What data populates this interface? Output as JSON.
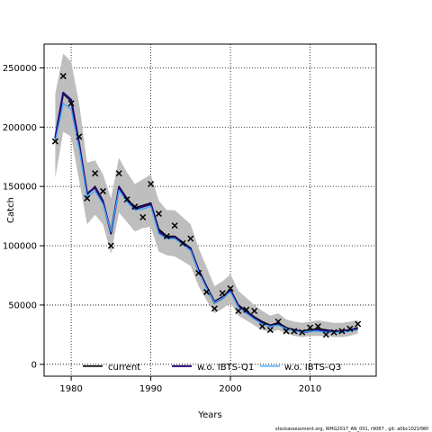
{
  "chart_data": {
    "type": "line",
    "xlabel": "Years",
    "ylabel": "Catch",
    "xlim": [
      1976.6,
      2018.3
    ],
    "ylim": [
      -10000,
      270000
    ],
    "x_ticks": [
      1980,
      1990,
      2000,
      2010
    ],
    "y_ticks": [
      0,
      50000,
      100000,
      150000,
      200000,
      250000
    ],
    "grid": true,
    "legend_position": "bottom",
    "colors": {
      "current": "#000000",
      "wo_q1": "#2a0a78",
      "wo_q3": "#3aa6ff",
      "band": "#bebebe",
      "observed": "#000000"
    },
    "x": [
      1978,
      1979,
      1980,
      1981,
      1982,
      1983,
      1984,
      1985,
      1986,
      1987,
      1988,
      1989,
      1990,
      1991,
      1992,
      1993,
      1994,
      1995,
      1996,
      1997,
      1998,
      1999,
      2000,
      2001,
      2002,
      2003,
      2004,
      2005,
      2006,
      2007,
      2008,
      2009,
      2010,
      2011,
      2012,
      2013,
      2014,
      2015,
      2016
    ],
    "series": [
      {
        "name": "current",
        "values": [
          190000,
          228000,
          222000,
          185000,
          143000,
          150000,
          138000,
          110000,
          150000,
          140000,
          132000,
          134000,
          136000,
          114000,
          108000,
          108000,
          103000,
          98000,
          80000,
          66000,
          53000,
          57000,
          63000,
          50000,
          45000,
          40000,
          36000,
          33000,
          35000,
          31000,
          29000,
          28000,
          29000,
          30000,
          29000,
          28000,
          28000,
          29000,
          31000
        ]
      },
      {
        "name": "w.o. IBTS-Q1",
        "values": [
          191000,
          229000,
          223000,
          186000,
          144000,
          149000,
          137000,
          111000,
          149000,
          139000,
          131000,
          133000,
          135000,
          112000,
          107000,
          107000,
          102000,
          97000,
          79000,
          65000,
          52000,
          56000,
          62000,
          49000,
          44000,
          39000,
          35000,
          32000,
          34000,
          30000,
          29000,
          27000,
          28000,
          29000,
          28000,
          28000,
          28000,
          29000,
          30000
        ]
      },
      {
        "name": "w.o. IBTS-Q3",
        "values": [
          188000,
          220000,
          215000,
          182000,
          141000,
          146000,
          135000,
          112000,
          147000,
          137000,
          130000,
          131000,
          133000,
          110000,
          106000,
          106000,
          101000,
          96000,
          78000,
          64000,
          52000,
          56000,
          61000,
          48000,
          43000,
          38000,
          34000,
          32000,
          33000,
          30000,
          28000,
          27000,
          28000,
          28000,
          27000,
          27000,
          27000,
          28000,
          29000
        ]
      }
    ],
    "band_upper": [
      228000,
      262000,
      255000,
      220000,
      170000,
      172000,
      160000,
      140000,
      174000,
      162000,
      152000,
      156000,
      160000,
      138000,
      130000,
      130000,
      124000,
      118000,
      98000,
      82000,
      66000,
      70000,
      76000,
      62000,
      56000,
      50000,
      45000,
      41000,
      43000,
      38000,
      36000,
      35000,
      36000,
      37000,
      36000,
      35000,
      35000,
      36000,
      37000
    ],
    "band_lower": [
      157000,
      196000,
      192000,
      155000,
      118000,
      126000,
      118000,
      93000,
      128000,
      120000,
      112000,
      115000,
      116000,
      95000,
      92000,
      91000,
      87000,
      83000,
      66000,
      54000,
      43000,
      47000,
      52000,
      41000,
      37000,
      33000,
      29000,
      27000,
      29000,
      26000,
      24000,
      23000,
      24000,
      24000,
      24000,
      23000,
      23000,
      24000,
      26000
    ],
    "observed": {
      "x": [
        1978,
        1979,
        1980,
        1981,
        1982,
        1983,
        1984,
        1985,
        1986,
        1987,
        1988,
        1989,
        1990,
        1991,
        1992,
        1993,
        1994,
        1995,
        1996,
        1997,
        1998,
        1999,
        2000,
        2001,
        2002,
        2003,
        2004,
        2005,
        2006,
        2007,
        2008,
        2009,
        2010,
        2011,
        2012,
        2013,
        2014,
        2015,
        2016
      ],
      "y": [
        188000,
        243000,
        220000,
        192000,
        140000,
        161000,
        146000,
        100000,
        161000,
        139000,
        133000,
        124000,
        152000,
        127000,
        108000,
        117000,
        102000,
        106000,
        77000,
        61000,
        47000,
        60000,
        64000,
        45000,
        46000,
        45000,
        32000,
        29000,
        36000,
        28000,
        28000,
        27000,
        31000,
        32000,
        25000,
        27000,
        28000,
        30000,
        34000
      ]
    }
  },
  "footer": "stockassessment.org, WHG2017_AN_001, r9087 , git: a0bc1021f96f"
}
